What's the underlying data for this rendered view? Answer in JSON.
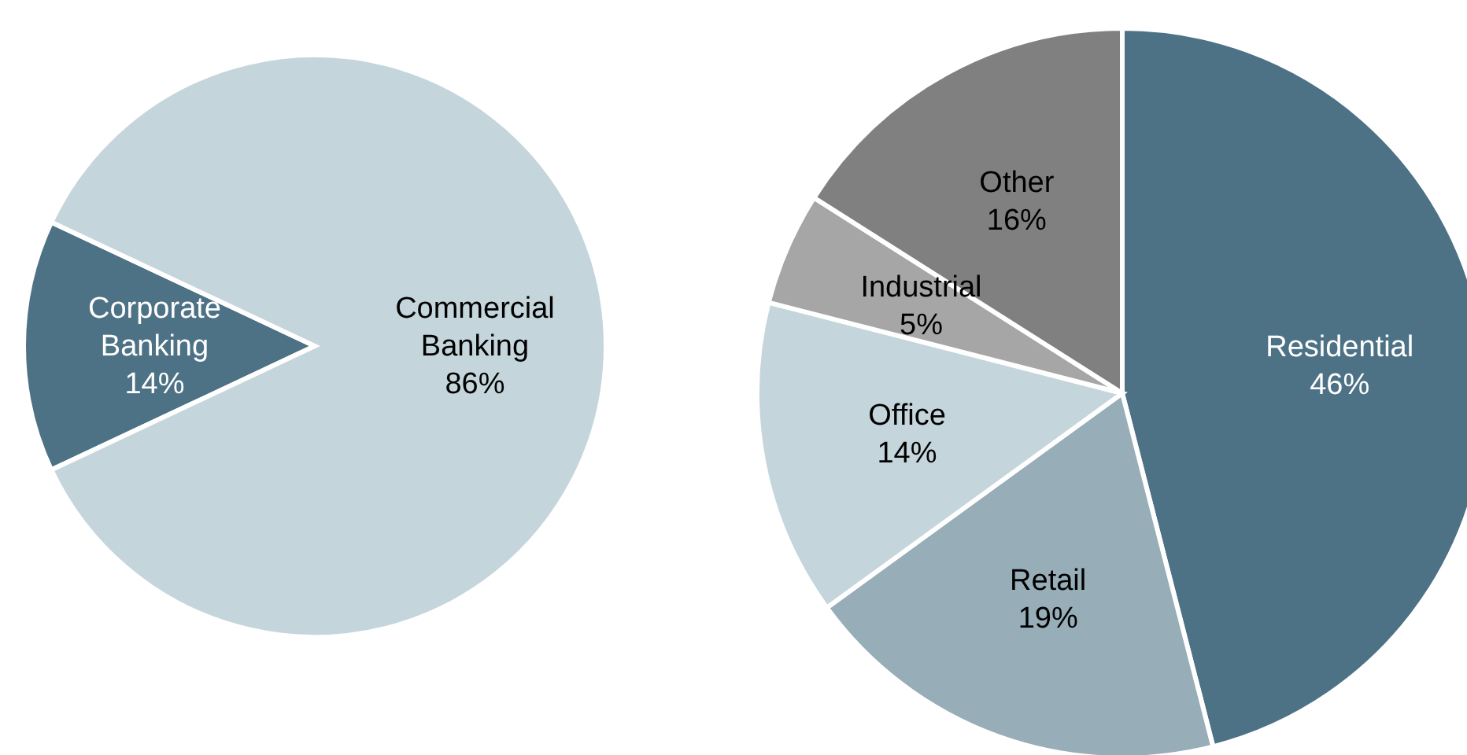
{
  "chart_data": [
    {
      "type": "pie",
      "categories": [
        "Corporate Banking",
        "Commercial Banking"
      ],
      "values": [
        14,
        86
      ],
      "value_labels": [
        "14%",
        "86%"
      ],
      "colors": [
        "#4d7285",
        "#c5d5dc"
      ]
    },
    {
      "type": "pie",
      "categories": [
        "Residential",
        "Retail",
        "Office",
        "Industrial",
        "Other"
      ],
      "values": [
        46,
        19,
        14,
        5,
        16
      ],
      "value_labels": [
        "46%",
        "19%",
        "14%",
        "5%",
        "16%"
      ],
      "colors": [
        "#4d7285",
        "#97adb8",
        "#c5d5dc",
        "#a6a6a6",
        "#808080"
      ]
    }
  ]
}
